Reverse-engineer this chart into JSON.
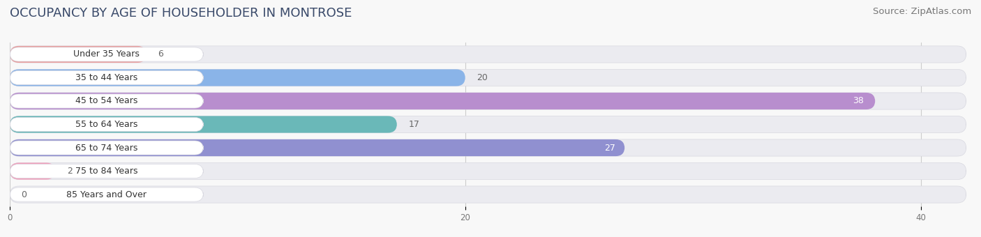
{
  "title": "OCCUPANCY BY AGE OF HOUSEHOLDER IN MONTROSE",
  "source": "Source: ZipAtlas.com",
  "categories": [
    "Under 35 Years",
    "35 to 44 Years",
    "45 to 54 Years",
    "55 to 64 Years",
    "65 to 74 Years",
    "75 to 84 Years",
    "85 Years and Over"
  ],
  "values": [
    6,
    20,
    38,
    17,
    27,
    2,
    0
  ],
  "bar_colors": [
    "#e8a0a0",
    "#8ab4e8",
    "#b88ece",
    "#6ab8b8",
    "#9090d0",
    "#f0a0bc",
    "#f0ce98"
  ],
  "bar_bg_color": "#ebebf0",
  "bar_border_color": "#d8d8e0",
  "label_bg_color": "#ffffff",
  "xlim": [
    0,
    42
  ],
  "xticks": [
    0,
    20,
    40
  ],
  "title_fontsize": 13,
  "source_fontsize": 9.5,
  "label_fontsize": 9,
  "value_fontsize": 9,
  "background_color": "#f8f8f8",
  "title_color": "#3a4a6a",
  "value_color_inside": "#ffffff",
  "value_color_outside": "#666666"
}
